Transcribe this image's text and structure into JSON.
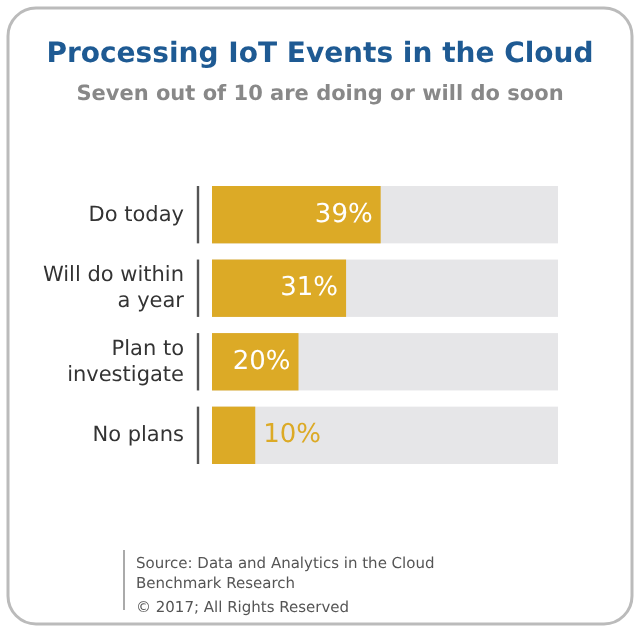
{
  "chart_data": {
    "type": "bar",
    "orientation": "horizontal",
    "title": "Processing IoT Events in the Cloud",
    "subtitle": "Seven out of 10 are doing or will do soon",
    "categories": [
      "Do today",
      "Will do within a year",
      "Plan to investigate",
      "No plans"
    ],
    "values": [
      39,
      31,
      20,
      10
    ],
    "value_labels": [
      "39%",
      "31%",
      "20%",
      "10%"
    ],
    "color": "#dcaa26",
    "xlim": [
      0,
      80
    ],
    "annotations": [
      "Source: Data and Analytics in the Cloud Benchmark Research",
      "© 2017; All Rights Reserved"
    ]
  }
}
